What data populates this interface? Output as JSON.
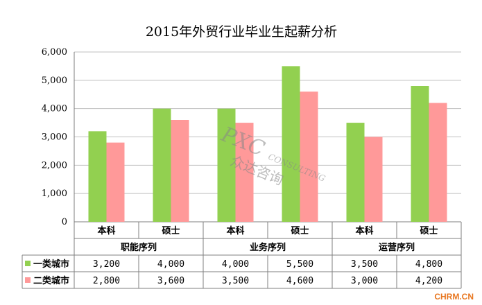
{
  "chart_data": {
    "type": "bar",
    "title": "2015年外贸行业毕业生起薪分析",
    "groups": [
      {
        "name": "职能序列",
        "categories": [
          "本科",
          "硕士"
        ]
      },
      {
        "name": "业务序列",
        "categories": [
          "本科",
          "硕士"
        ]
      },
      {
        "name": "运营序列",
        "categories": [
          "本科",
          "硕士"
        ]
      }
    ],
    "categories": [
      "本科",
      "硕士",
      "本科",
      "硕士",
      "本科",
      "硕士"
    ],
    "series": [
      {
        "name": "一类城市",
        "color": "#92d050",
        "values": [
          3200,
          4000,
          4000,
          5500,
          3500,
          4800
        ],
        "labels": [
          "3,200",
          "4,000",
          "4,000",
          "5,500",
          "3,500",
          "4,800"
        ]
      },
      {
        "name": "二类城市",
        "color": "#ff9999",
        "values": [
          2800,
          3600,
          3500,
          4600,
          3000,
          4200
        ],
        "labels": [
          "2,800",
          "3,600",
          "3,500",
          "4,600",
          "3,000",
          "4,200"
        ]
      }
    ],
    "ylim": [
      0,
      6000
    ],
    "yticks": [
      0,
      1000,
      2000,
      3000,
      4000,
      5000,
      6000
    ],
    "ytick_labels": [
      "0",
      "1,000",
      "2,000",
      "3,000",
      "4,000",
      "5,000",
      "6,000"
    ],
    "grid": true,
    "legend": "data-table"
  },
  "watermark": {
    "latin": "PXC",
    "sub": "CONSULTING",
    "cjk": "众达咨询"
  },
  "brand": "CHRM.CN"
}
